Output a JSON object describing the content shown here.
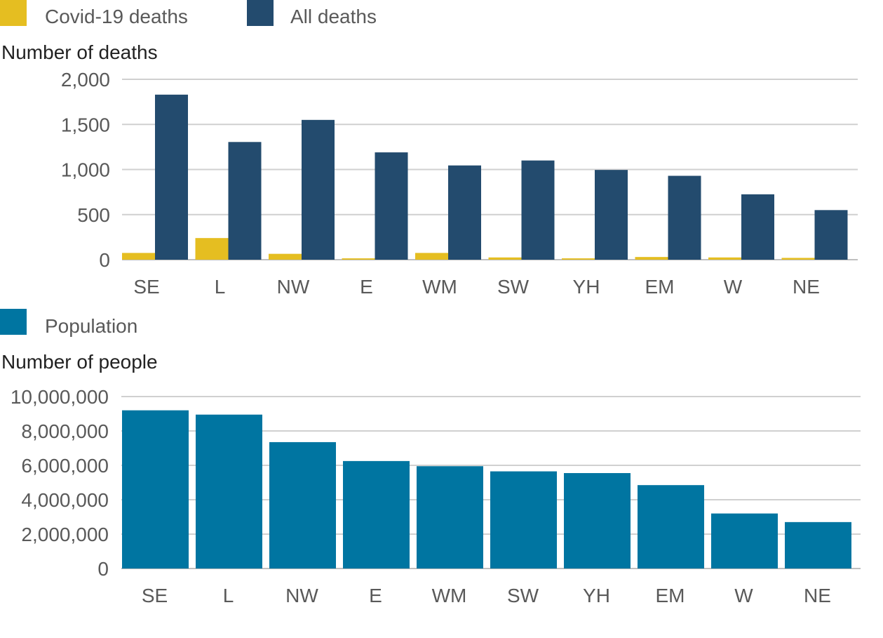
{
  "chart_data": [
    {
      "type": "bar",
      "title": "",
      "ylabel": "Number of deaths",
      "xlabel": "",
      "ylim": [
        0,
        2000
      ],
      "yticks": [
        "0",
        "500",
        "1,000",
        "1,500",
        "2,000"
      ],
      "ytick_values": [
        0,
        500,
        1000,
        1500,
        2000
      ],
      "categories": [
        "SE",
        "L",
        "NW",
        "E",
        "WM",
        "SW",
        "YH",
        "EM",
        "W",
        "NE"
      ],
      "series": [
        {
          "name": "Covid-19 deaths",
          "color": "#e5be21",
          "values": [
            75,
            240,
            65,
            15,
            75,
            25,
            15,
            30,
            25,
            20
          ]
        },
        {
          "name": "All deaths",
          "color": "#234b6e",
          "values": [
            1830,
            1305,
            1550,
            1190,
            1045,
            1100,
            995,
            930,
            725,
            550
          ]
        }
      ],
      "legend": "top-left",
      "grid": true
    },
    {
      "type": "bar",
      "title": "",
      "ylabel": "Number of people",
      "xlabel": "",
      "ylim": [
        0,
        10000000
      ],
      "yticks": [
        "0",
        "2,000,000",
        "4,000,000",
        "6,000,000",
        "8,000,000",
        "10,000,000"
      ],
      "ytick_values": [
        0,
        2000000,
        4000000,
        6000000,
        8000000,
        10000000
      ],
      "categories": [
        "SE",
        "L",
        "NW",
        "E",
        "WM",
        "SW",
        "YH",
        "EM",
        "W",
        "NE"
      ],
      "series": [
        {
          "name": "Population",
          "color": "#0075a1",
          "values": [
            9200000,
            8950000,
            7350000,
            6250000,
            5950000,
            5650000,
            5550000,
            4850000,
            3200000,
            2700000
          ]
        }
      ],
      "legend": "top-left",
      "grid": true
    }
  ],
  "colors": {
    "grid": "#d0d0d0",
    "axis_text": "#595959",
    "axis_line": "#bfbfbf"
  }
}
